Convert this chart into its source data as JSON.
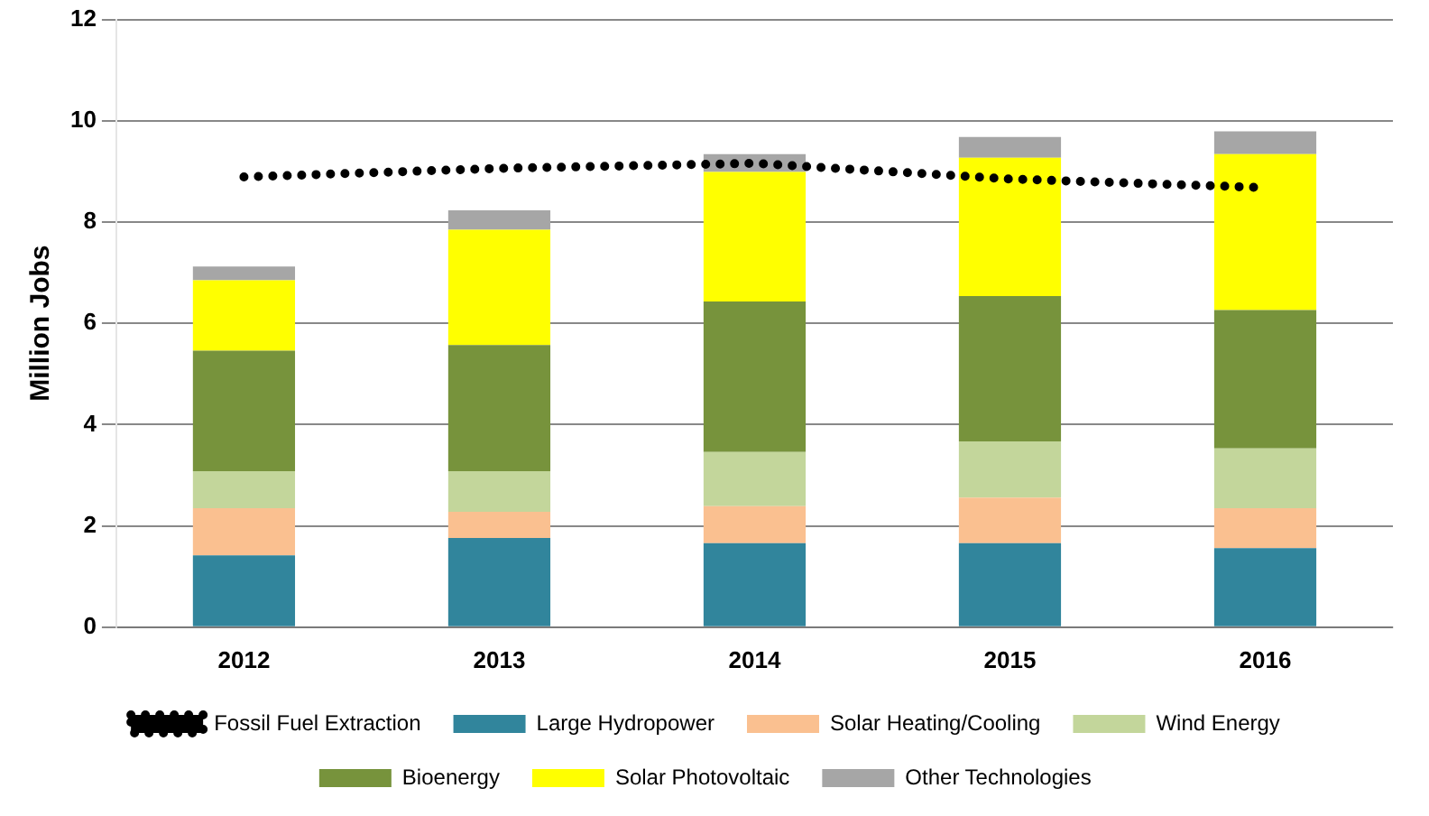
{
  "chart_data": {
    "type": "bar",
    "stacked": true,
    "ylabel": "Million Jobs",
    "categories": [
      "2012",
      "2013",
      "2014",
      "2015",
      "2016"
    ],
    "series": [
      {
        "name": "Large Hydropower",
        "color": "#31859c",
        "values": [
          1.42,
          1.76,
          1.66,
          1.66,
          1.56
        ]
      },
      {
        "name": "Solar Heating/Cooling",
        "color": "#fac090",
        "values": [
          0.93,
          0.52,
          0.73,
          0.9,
          0.79
        ]
      },
      {
        "name": "Wind Energy",
        "color": "#c3d69b",
        "values": [
          0.73,
          0.8,
          1.07,
          1.11,
          1.18
        ]
      },
      {
        "name": "Bioenergy",
        "color": "#77933c",
        "values": [
          2.38,
          2.49,
          2.97,
          2.87,
          2.73
        ]
      },
      {
        "name": "Solar Photovoltaic",
        "color": "#ffff00",
        "values": [
          1.39,
          2.28,
          2.56,
          2.73,
          3.08
        ]
      },
      {
        "name": "Other Technologies",
        "color": "#a6a6a6",
        "values": [
          0.27,
          0.38,
          0.35,
          0.41,
          0.45
        ]
      },
      {
        "name": "Fossil Fuel Extraction",
        "type": "line",
        "color": "#000000",
        "line_style": "dotted",
        "marker": "none",
        "values": [
          8.89,
          9.06,
          9.16,
          8.85,
          8.68
        ]
      }
    ],
    "ylim": [
      0,
      12
    ],
    "yticks": [
      0,
      2,
      4,
      6,
      8,
      10,
      12
    ],
    "grid": "y",
    "legend": "bottom"
  }
}
